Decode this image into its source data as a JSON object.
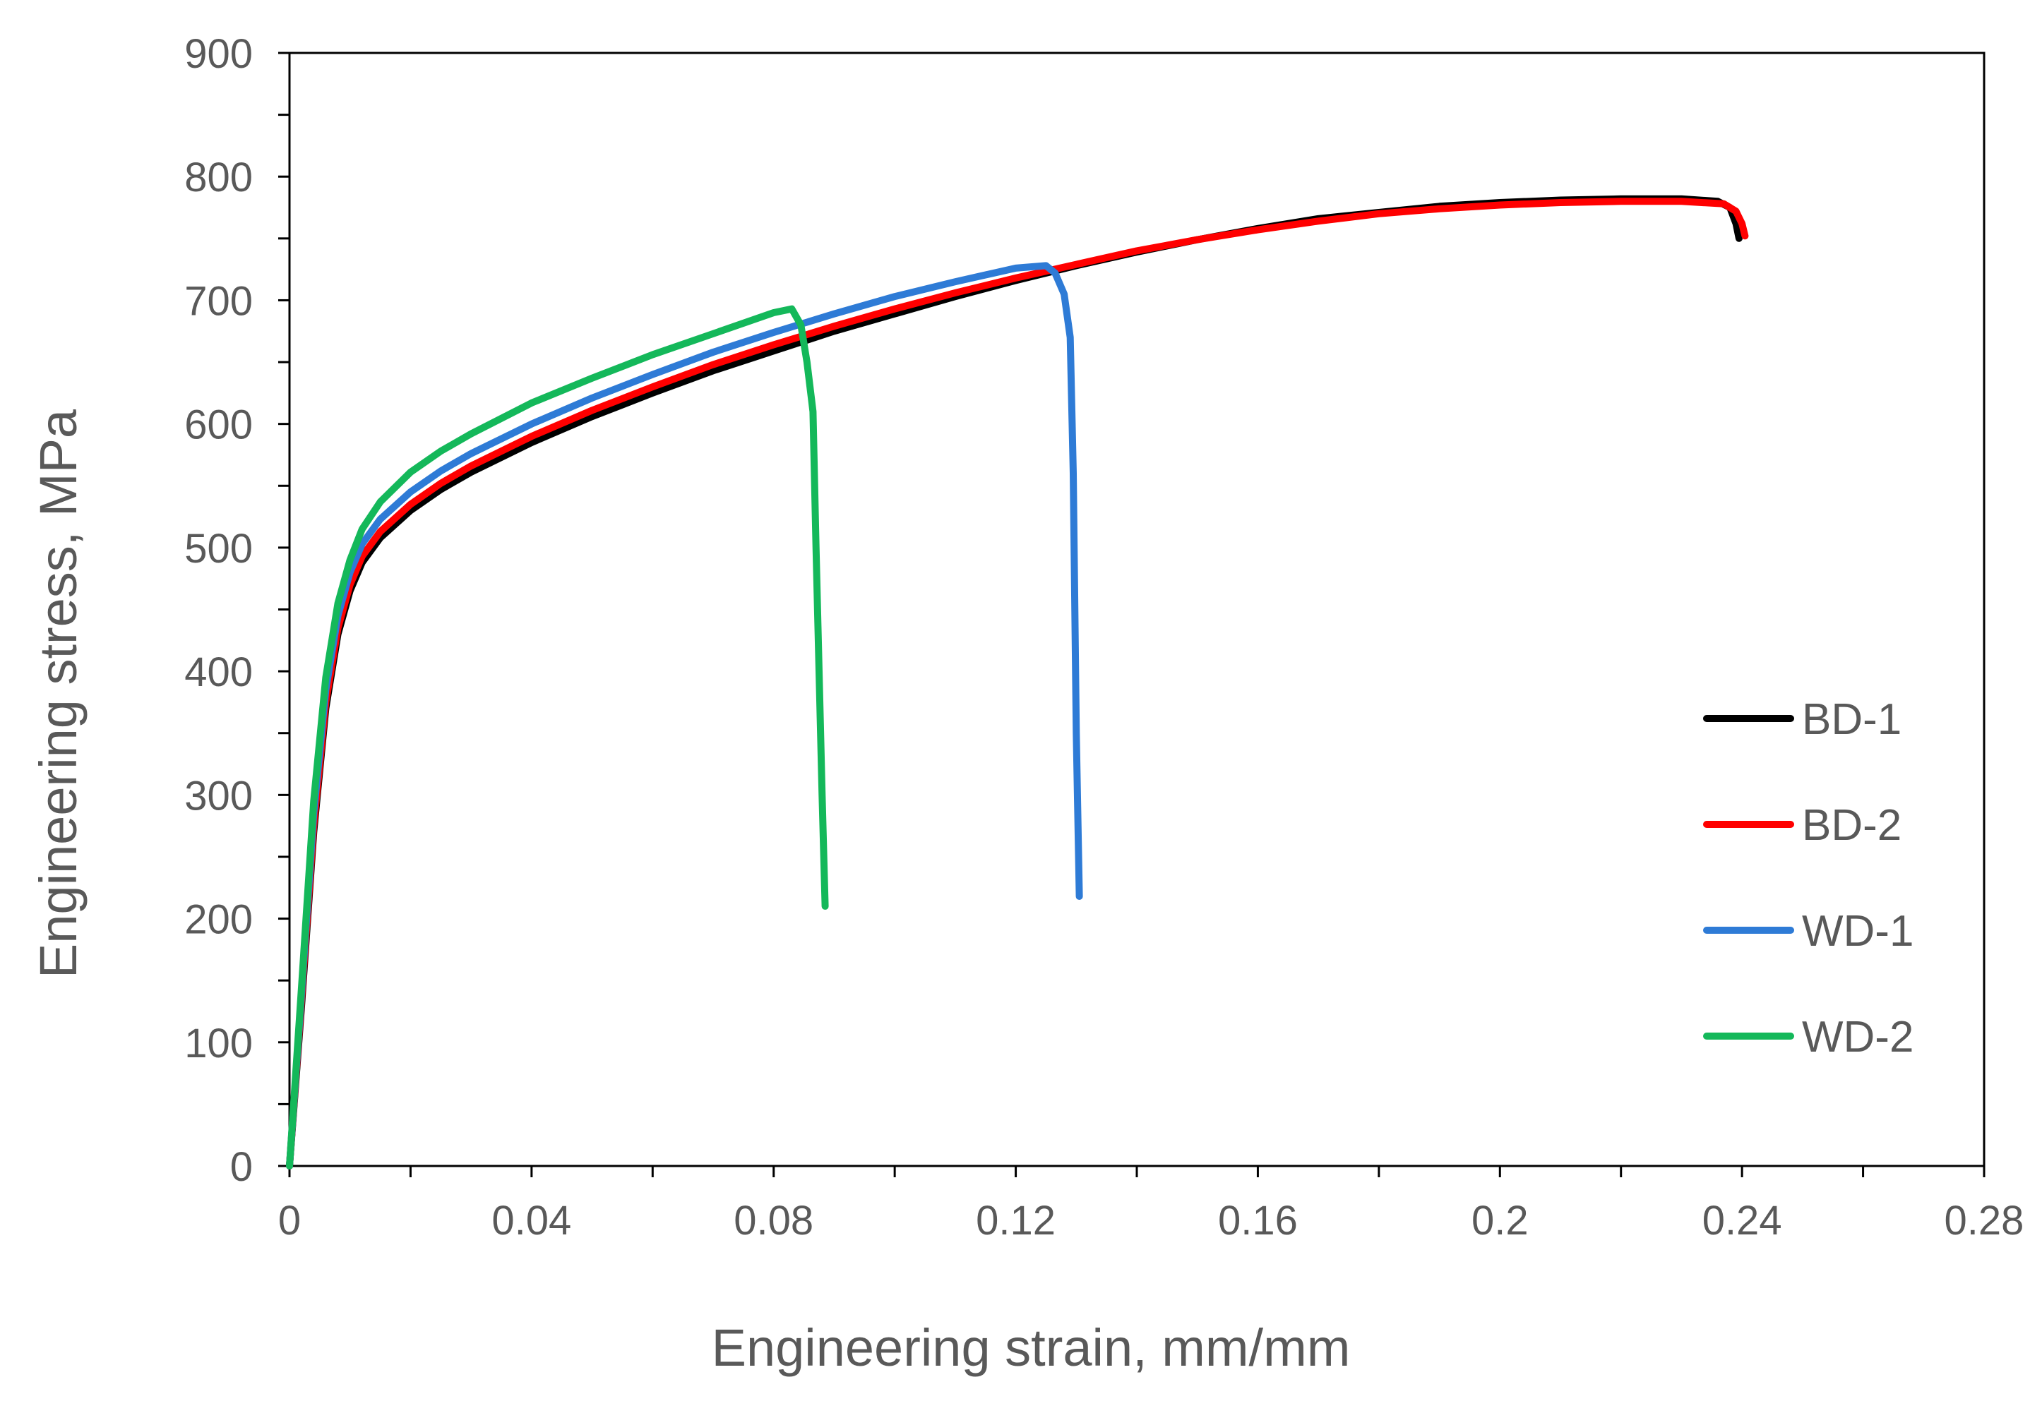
{
  "chart_data": {
    "type": "line",
    "title": "",
    "xlabel": "Engineering strain, mm/mm",
    "ylabel": "Engineering stress, MPa",
    "xlim": [
      0,
      0.28
    ],
    "ylim": [
      0,
      900
    ],
    "xticks": [
      0,
      0.04,
      0.08,
      0.12,
      0.16,
      0.2,
      0.24,
      0.28
    ],
    "xtick_labels": [
      "0",
      "0.04",
      "0.08",
      "0.12",
      "0.16",
      "0.2",
      "0.24",
      "0.28"
    ],
    "yticks": [
      0,
      100,
      200,
      300,
      400,
      500,
      600,
      700,
      800,
      900
    ],
    "ytick_labels": [
      "0",
      "100",
      "200",
      "300",
      "400",
      "500",
      "600",
      "700",
      "800",
      "900"
    ],
    "grid": false,
    "legend_position": "right",
    "series": [
      {
        "name": "BD-1",
        "color": "#000000",
        "x": [
          0,
          0.002,
          0.004,
          0.006,
          0.008,
          0.01,
          0.012,
          0.015,
          0.02,
          0.025,
          0.03,
          0.04,
          0.05,
          0.06,
          0.07,
          0.08,
          0.09,
          0.1,
          0.11,
          0.12,
          0.13,
          0.14,
          0.15,
          0.16,
          0.17,
          0.18,
          0.19,
          0.2,
          0.21,
          0.22,
          0.23,
          0.236,
          0.238,
          0.239,
          0.2395
        ],
        "y": [
          0,
          130,
          270,
          370,
          430,
          465,
          488,
          508,
          530,
          547,
          561,
          585,
          606,
          625,
          643,
          659,
          675,
          689,
          703,
          716,
          728,
          739,
          749,
          758,
          766,
          771,
          776,
          779,
          781,
          782,
          782,
          780,
          775,
          762,
          750
        ]
      },
      {
        "name": "BD-2",
        "color": "#ff0000",
        "x": [
          0,
          0.002,
          0.004,
          0.006,
          0.008,
          0.01,
          0.012,
          0.015,
          0.02,
          0.025,
          0.03,
          0.04,
          0.05,
          0.06,
          0.07,
          0.08,
          0.09,
          0.1,
          0.11,
          0.12,
          0.13,
          0.14,
          0.15,
          0.16,
          0.17,
          0.18,
          0.19,
          0.2,
          0.21,
          0.22,
          0.23,
          0.237,
          0.239,
          0.24,
          0.2405
        ],
        "y": [
          0,
          135,
          275,
          375,
          435,
          470,
          493,
          513,
          535,
          552,
          566,
          590,
          611,
          630,
          648,
          664,
          679,
          693,
          706,
          718,
          729,
          740,
          749,
          757,
          764,
          770,
          774,
          777,
          779,
          780,
          780,
          778,
          772,
          762,
          752
        ]
      },
      {
        "name": "WD-1",
        "color": "#2e7bd6",
        "x": [
          0,
          0.002,
          0.004,
          0.006,
          0.008,
          0.01,
          0.012,
          0.015,
          0.02,
          0.025,
          0.03,
          0.04,
          0.05,
          0.06,
          0.07,
          0.08,
          0.09,
          0.1,
          0.11,
          0.12,
          0.125,
          0.1265,
          0.128,
          0.129,
          0.1295,
          0.13,
          0.1305
        ],
        "y": [
          0,
          140,
          285,
          385,
          445,
          480,
          503,
          523,
          545,
          562,
          576,
          600,
          621,
          640,
          658,
          674,
          689,
          703,
          715,
          726,
          728,
          722,
          705,
          670,
          560,
          350,
          218
        ]
      },
      {
        "name": "WD-2",
        "color": "#14b85a",
        "x": [
          0,
          0.002,
          0.004,
          0.006,
          0.008,
          0.01,
          0.012,
          0.015,
          0.02,
          0.025,
          0.03,
          0.04,
          0.05,
          0.06,
          0.07,
          0.08,
          0.083,
          0.0845,
          0.0855,
          0.0865,
          0.087,
          0.0875,
          0.088,
          0.0885
        ],
        "y": [
          0,
          145,
          295,
          395,
          455,
          490,
          515,
          537,
          561,
          578,
          592,
          617,
          637,
          656,
          673,
          690,
          693,
          680,
          650,
          610,
          500,
          400,
          300,
          210
        ]
      }
    ]
  }
}
